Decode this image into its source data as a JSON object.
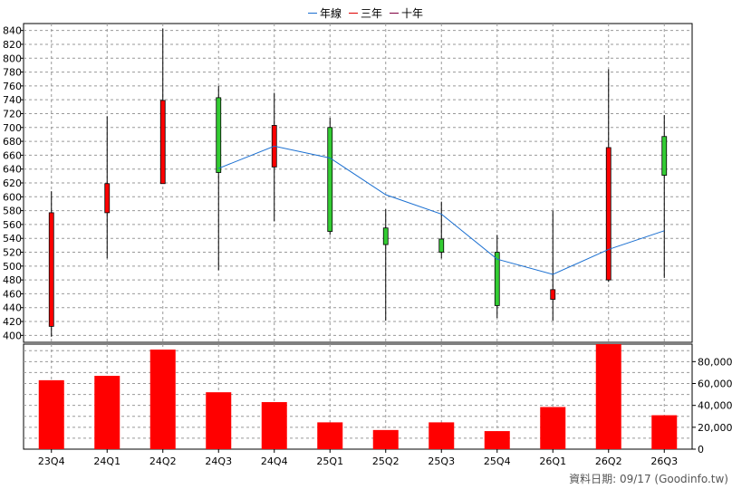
{
  "legend": [
    {
      "label": "年線",
      "color": "#1a6fd1"
    },
    {
      "label": "三年",
      "color": "#e00000"
    },
    {
      "label": "十年",
      "color": "#800040"
    }
  ],
  "footer": {
    "text": "資料日期: 09/17  (Goodinfo.tw)"
  },
  "colors": {
    "up": "#ff0000",
    "down": "#33cc33",
    "volume": "#ff0000",
    "line": "#1a6fd1",
    "grid": "#999999"
  },
  "chart_data": [
    {
      "type": "candlestick",
      "title": "",
      "categories": [
        "23Q4",
        "24Q1",
        "24Q2",
        "24Q3",
        "24Q4",
        "25Q1",
        "25Q2",
        "25Q3",
        "25Q4",
        "26Q1",
        "26Q2",
        "26Q3"
      ],
      "ylim": [
        390,
        850
      ],
      "yticks": [
        400,
        420,
        440,
        460,
        480,
        500,
        520,
        540,
        560,
        580,
        600,
        620,
        640,
        660,
        680,
        700,
        720,
        740,
        760,
        780,
        800,
        820,
        840
      ],
      "grid": true,
      "candles": [
        {
          "open": 413,
          "high": 608,
          "low": 398,
          "close": 577
        },
        {
          "open": 577,
          "high": 716,
          "low": 511,
          "close": 619
        },
        {
          "open": 619,
          "high": 843,
          "low": 619,
          "close": 739
        },
        {
          "open": 743,
          "high": 760,
          "low": 494,
          "close": 635
        },
        {
          "open": 643,
          "high": 750,
          "low": 565,
          "close": 703
        },
        {
          "open": 700,
          "high": 714,
          "low": 545,
          "close": 550
        },
        {
          "open": 555,
          "high": 582,
          "low": 421,
          "close": 531
        },
        {
          "open": 539,
          "high": 593,
          "low": 511,
          "close": 520
        },
        {
          "open": 520,
          "high": 545,
          "low": 425,
          "close": 443
        },
        {
          "open": 452,
          "high": 580,
          "low": 421,
          "close": 466
        },
        {
          "open": 480,
          "high": 784,
          "low": 477,
          "close": 671
        },
        {
          "open": 687,
          "high": 718,
          "low": 483,
          "close": 631
        }
      ],
      "series": [
        {
          "name": "年線",
          "values": [
            null,
            null,
            null,
            641,
            673,
            656,
            603,
            575,
            510,
            488,
            524,
            551
          ]
        }
      ]
    },
    {
      "type": "bar",
      "categories": [
        "23Q4",
        "24Q1",
        "24Q2",
        "24Q3",
        "24Q4",
        "25Q1",
        "25Q2",
        "25Q3",
        "25Q4",
        "26Q1",
        "26Q2",
        "26Q3"
      ],
      "values": [
        63000,
        67000,
        91000,
        52000,
        43000,
        24500,
        17500,
        24500,
        16500,
        38500,
        96000,
        31000
      ],
      "ylim": [
        0,
        96000
      ],
      "yticks": [
        0,
        20000,
        40000,
        60000,
        80000
      ],
      "ytick_labels": [
        "0",
        "20,000",
        "40,000",
        "60,000",
        "80,000"
      ],
      "grid": true
    }
  ]
}
